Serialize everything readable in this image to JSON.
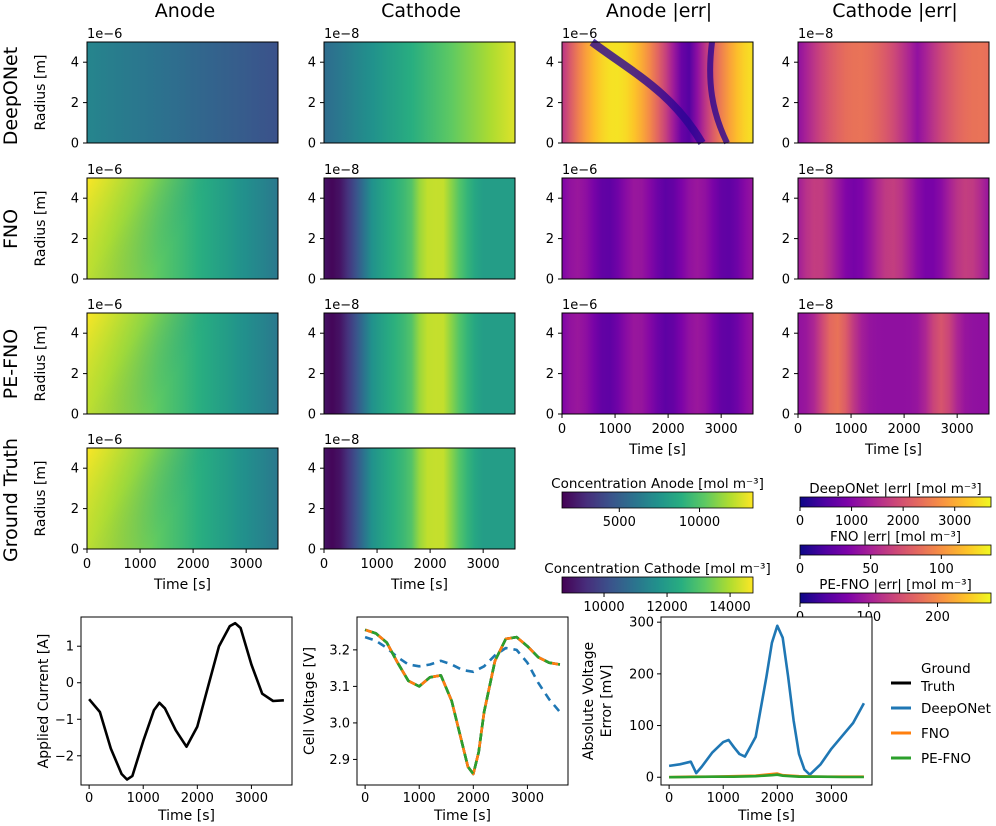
{
  "columns": [
    "Anode",
    "Cathode",
    "Anode |err|",
    "Cathode |err|"
  ],
  "rows": [
    "DeepONet",
    "FNO",
    "PE-FNO",
    "Ground Truth"
  ],
  "offsets": [
    "1e−6",
    "1e−8",
    "1e−6",
    "1e−8"
  ],
  "radius_label": "Radius [m]",
  "time_label": "Time [s]",
  "heatmap_x_ticks": [
    "0",
    "1000",
    "2000",
    "3000"
  ],
  "heatmap_y_ticks": [
    "0",
    "2",
    "4"
  ],
  "colorbars": {
    "anode": {
      "title": "Concentration Anode [mol m⁻³]",
      "ticks": [
        "5000",
        "10000"
      ],
      "colormap": "viridis"
    },
    "cathode": {
      "title": "Concentration Cathode [mol m⁻³]",
      "ticks": [
        "10000",
        "12000",
        "14000"
      ],
      "colormap": "viridis"
    },
    "deeponet_err": {
      "title": "DeepONet |err| [mol m⁻³]",
      "ticks": [
        "0",
        "1000",
        "2000",
        "3000"
      ],
      "colormap": "plasma"
    },
    "fno_err": {
      "title": "FNO |err| [mol m⁻³]",
      "ticks": [
        "0",
        "50",
        "100"
      ],
      "colormap": "plasma"
    },
    "pefno_err": {
      "title": "PE-FNO |err| [mol m⁻³]",
      "ticks": [
        "0",
        "100",
        "200"
      ],
      "colormap": "plasma"
    }
  },
  "colors": {
    "ground_truth": "#000000",
    "deeponet": "#1f77b4",
    "fno": "#ff7f0e",
    "pe_fno": "#2ca02c"
  },
  "chart_data": [
    {
      "type": "heatmap",
      "description": "4x4 grid of concentration fields and absolute errors over time (x, 0-3600 s) and radius (y, 0-5e-6 m anode / 0-5e-8 m cathode)",
      "xlabel": "Time [s]",
      "ylabel": "Radius [m]",
      "xlim": [
        0,
        3600
      ],
      "ylim": [
        0,
        5
      ]
    },
    {
      "type": "line",
      "xlabel": "Time [s]",
      "ylabel": "Applied Current [A]",
      "xlim": [
        -150,
        3750
      ],
      "ylim": [
        -2.8,
        1.8
      ],
      "x_ticks": [
        "0",
        "1000",
        "2000",
        "3000"
      ],
      "y_ticks": [
        "−2",
        "−1",
        "0",
        "1"
      ],
      "series": [
        {
          "color": "#000000",
          "x": [
            0,
            200,
            400,
            600,
            700,
            800,
            1000,
            1200,
            1300,
            1400,
            1600,
            1800,
            2000,
            2200,
            2400,
            2600,
            2700,
            2800,
            3000,
            3200,
            3400,
            3600
          ],
          "y": [
            -0.45,
            -0.8,
            -1.8,
            -2.5,
            -2.65,
            -2.55,
            -1.6,
            -0.75,
            -0.55,
            -0.7,
            -1.3,
            -1.75,
            -1.2,
            -0.1,
            1.0,
            1.55,
            1.63,
            1.5,
            0.5,
            -0.3,
            -0.5,
            -0.48
          ]
        }
      ]
    },
    {
      "type": "line",
      "xlabel": "Time [s]",
      "ylabel": "Cell Voltage [V]",
      "xlim": [
        -150,
        3750
      ],
      "ylim": [
        2.83,
        3.29
      ],
      "x_ticks": [
        "0",
        "1000",
        "2000",
        "3000"
      ],
      "y_ticks": [
        "2.9",
        "3.0",
        "3.1",
        "3.2"
      ],
      "series": [
        {
          "name": "Ground Truth",
          "color": "#000000",
          "style": "solid",
          "x": [
            0,
            200,
            400,
            600,
            800,
            1000,
            1200,
            1400,
            1600,
            1800,
            1900,
            2000,
            2100,
            2200,
            2400,
            2600,
            2800,
            3000,
            3200,
            3400,
            3600
          ],
          "y": [
            3.255,
            3.245,
            3.22,
            3.165,
            3.115,
            3.1,
            3.125,
            3.13,
            3.06,
            2.94,
            2.88,
            2.86,
            2.92,
            3.03,
            3.17,
            3.23,
            3.235,
            3.21,
            3.18,
            3.165,
            3.16
          ]
        },
        {
          "name": "DeepONet",
          "color": "#1f77b4",
          "style": "dashed",
          "x": [
            0,
            200,
            400,
            600,
            800,
            1000,
            1200,
            1400,
            1600,
            1800,
            2000,
            2200,
            2400,
            2600,
            2800,
            3000,
            3200,
            3400,
            3600
          ],
          "y": [
            3.235,
            3.225,
            3.205,
            3.18,
            3.16,
            3.155,
            3.16,
            3.17,
            3.16,
            3.145,
            3.14,
            3.155,
            3.185,
            3.205,
            3.2,
            3.165,
            3.11,
            3.065,
            3.03
          ]
        },
        {
          "name": "FNO",
          "color": "#ff7f0e",
          "style": "dashed",
          "x": [
            0,
            200,
            400,
            600,
            800,
            1000,
            1200,
            1400,
            1600,
            1800,
            1900,
            2000,
            2100,
            2200,
            2400,
            2600,
            2800,
            3000,
            3200,
            3400,
            3600
          ],
          "y": [
            3.255,
            3.245,
            3.22,
            3.165,
            3.115,
            3.1,
            3.125,
            3.13,
            3.06,
            2.94,
            2.88,
            2.86,
            2.92,
            3.03,
            3.17,
            3.23,
            3.235,
            3.21,
            3.18,
            3.165,
            3.16
          ]
        },
        {
          "name": "PE-FNO",
          "color": "#2ca02c",
          "style": "dashed",
          "x": [
            0,
            200,
            400,
            600,
            800,
            1000,
            1200,
            1400,
            1600,
            1800,
            1900,
            2000,
            2100,
            2200,
            2400,
            2600,
            2800,
            3000,
            3200,
            3400,
            3600
          ],
          "y": [
            3.255,
            3.245,
            3.22,
            3.165,
            3.115,
            3.1,
            3.125,
            3.13,
            3.06,
            2.94,
            2.88,
            2.86,
            2.92,
            3.03,
            3.17,
            3.23,
            3.235,
            3.21,
            3.18,
            3.165,
            3.16
          ]
        }
      ]
    },
    {
      "type": "line",
      "xlabel": "Time [s]",
      "ylabel": "Absolute Voltage Error [mV]",
      "xlim": [
        -150,
        3750
      ],
      "ylim": [
        -15,
        310
      ],
      "x_ticks": [
        "0",
        "1000",
        "2000",
        "3000"
      ],
      "y_ticks": [
        "0",
        "100",
        "200",
        "300"
      ],
      "series": [
        {
          "name": "DeepONet",
          "color": "#1f77b4",
          "x": [
            0,
            200,
            400,
            500,
            600,
            800,
            1000,
            1100,
            1200,
            1300,
            1400,
            1600,
            1800,
            1900,
            2000,
            2100,
            2200,
            2300,
            2400,
            2500,
            2600,
            2800,
            3000,
            3200,
            3400,
            3600
          ],
          "y": [
            22,
            25,
            30,
            8,
            20,
            48,
            68,
            72,
            58,
            45,
            40,
            78,
            195,
            260,
            293,
            270,
            195,
            110,
            45,
            15,
            5,
            25,
            55,
            80,
            105,
            143
          ]
        },
        {
          "name": "FNO",
          "color": "#ff7f0e",
          "x": [
            0,
            400,
            800,
            1200,
            1600,
            1900,
            2000,
            2100,
            2400,
            2800,
            3200,
            3600
          ],
          "y": [
            0,
            1,
            1,
            2,
            3,
            6,
            7,
            4,
            2,
            1,
            1,
            1
          ]
        },
        {
          "name": "PE-FNO",
          "color": "#2ca02c",
          "x": [
            0,
            400,
            800,
            1200,
            1600,
            1900,
            2000,
            2100,
            2400,
            2800,
            3200,
            3600
          ],
          "y": [
            0,
            0.5,
            1,
            1,
            2,
            4,
            5,
            3,
            1,
            1,
            0.5,
            0.5
          ]
        }
      ]
    }
  ],
  "legend": [
    "Ground Truth",
    "DeepONet",
    "FNO",
    "PE-FNO"
  ]
}
